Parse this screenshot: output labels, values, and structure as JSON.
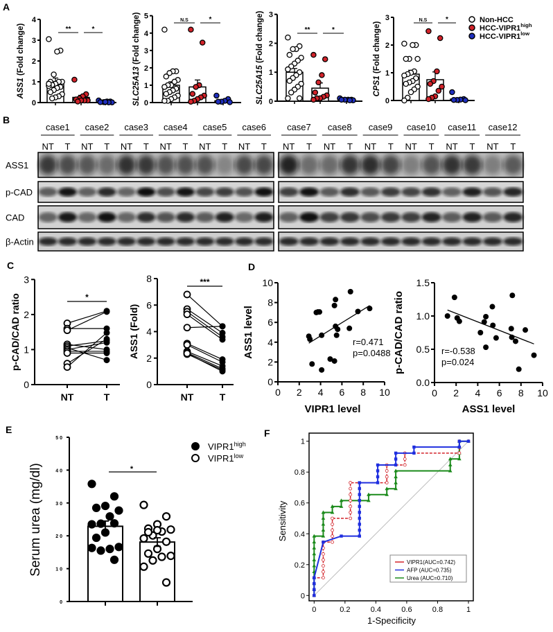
{
  "panel_labels": {
    "A": "A",
    "B": "B",
    "C": "C",
    "D": "D",
    "E": "E",
    "F": "F"
  },
  "legend_A": [
    {
      "text": "Non-HCC",
      "sup": "",
      "color": "#ffffff"
    },
    {
      "text": "HCC-VIPR1",
      "sup": "high",
      "color": "#d2232a"
    },
    {
      "text": "HCC-VIPR1",
      "sup": "low",
      "color": "#1f2fbf"
    }
  ],
  "legend_E": [
    {
      "text": "VIPR1",
      "sup": "high",
      "color": "#000000"
    },
    {
      "text": "VIPR1",
      "sup": "low",
      "color": "#ffffff"
    }
  ],
  "blot": {
    "cases_left": [
      "case1",
      "case2",
      "case3",
      "case4",
      "case5",
      "case6"
    ],
    "cases_right": [
      "case7",
      "case8",
      "case9",
      "case10",
      "case11",
      "case12"
    ],
    "lane_labels": [
      "NT",
      "T"
    ],
    "rows": [
      "ASS1",
      "p-CAD",
      "CAD",
      "β-Actin"
    ]
  },
  "chart_data": [
    {
      "id": "A1",
      "type": "bar",
      "gene": "ASS1",
      "ylabel_suffix": " (Fold change)",
      "ylim": [
        0,
        4
      ],
      "yticks": [
        "0",
        "1",
        "2",
        "3",
        "4"
      ],
      "groups": [
        {
          "name": "Non-HCC",
          "mean": 1.0,
          "sem": 0.18,
          "values": [
            3.05,
            2.5,
            2.45,
            1.35,
            1.0,
            1.0,
            1.0,
            0.9,
            0.85,
            0.8,
            0.75,
            0.7,
            0.6,
            0.5,
            0.4,
            0.3,
            0.25,
            0.2,
            0.9
          ]
        },
        {
          "name": "HCC-VIPR1 high",
          "mean": 0.25,
          "sem": 0.1,
          "values": [
            1.1,
            0.4,
            0.3,
            0.2,
            0.15,
            0.1,
            0.1,
            0.1,
            0.05
          ]
        },
        {
          "name": "HCC-VIPR1 low",
          "mean": 0.05,
          "sem": 0.02,
          "values": [
            0.1,
            0.05,
            0.05,
            0.02,
            0.02,
            0.01,
            0.01,
            0.03
          ]
        }
      ],
      "significance": [
        {
          "from": 0,
          "to": 1,
          "label": "**"
        },
        {
          "from": 1,
          "to": 2,
          "label": "*"
        }
      ]
    },
    {
      "id": "A2",
      "type": "bar",
      "gene": "SLC25A13",
      "ylabel_suffix": " (Fold change)",
      "ylim": [
        0,
        5
      ],
      "yticks": [
        "0",
        "1",
        "2",
        "3",
        "4",
        "5"
      ],
      "groups": [
        {
          "name": "Non-HCC",
          "mean": 1.0,
          "sem": 0.2,
          "values": [
            4.2,
            1.8,
            1.8,
            1.7,
            1.5,
            1.3,
            1.2,
            1.0,
            1.0,
            0.9,
            0.8,
            0.7,
            0.6,
            0.5,
            0.4,
            0.3,
            0.2,
            0.1,
            0.1
          ]
        },
        {
          "name": "HCC-VIPR1 high",
          "mean": 0.9,
          "sem": 0.4,
          "values": [
            4.2,
            3.45,
            1.0,
            0.9,
            0.5,
            0.4,
            0.3,
            0.2,
            0.1,
            0.05
          ]
        },
        {
          "name": "HCC-VIPR1 low",
          "mean": 0.1,
          "sem": 0.06,
          "values": [
            0.4,
            0.2,
            0.1,
            0.05,
            0.05,
            0.02
          ]
        }
      ],
      "significance": [
        {
          "from": 0,
          "to": 1,
          "label": "N.S"
        },
        {
          "from": 1,
          "to": 2,
          "label": "*"
        }
      ]
    },
    {
      "id": "A3",
      "type": "bar",
      "gene": "SLC25A15",
      "ylabel_suffix": " (Fold change)",
      "ylim": [
        0,
        3
      ],
      "yticks": [
        "0",
        "1",
        "2",
        "3"
      ],
      "groups": [
        {
          "name": "Non-HCC",
          "mean": 1.0,
          "sem": 0.13,
          "values": [
            2.2,
            1.9,
            1.8,
            1.8,
            1.6,
            1.5,
            1.4,
            1.3,
            1.2,
            1.1,
            1.0,
            0.9,
            0.8,
            0.7,
            0.6,
            0.5,
            0.4,
            0.3,
            0.1,
            0.1
          ]
        },
        {
          "name": "HCC-VIPR1 high",
          "mean": 0.45,
          "sem": 0.18,
          "values": [
            1.6,
            1.45,
            0.9,
            0.65,
            0.3,
            0.2,
            0.15,
            0.1,
            0.1,
            0.05
          ]
        },
        {
          "name": "HCC-VIPR1 low",
          "mean": 0.05,
          "sem": 0.01,
          "values": [
            0.1,
            0.05,
            0.05,
            0.05,
            0.05,
            0.03,
            0.03
          ]
        }
      ],
      "significance": [
        {
          "from": 0,
          "to": 1,
          "label": "**"
        },
        {
          "from": 1,
          "to": 2,
          "label": "*"
        }
      ]
    },
    {
      "id": "A4",
      "type": "bar",
      "gene": "CPS1",
      "ylabel_suffix": " (Fold change)",
      "ylim": [
        0,
        3
      ],
      "yticks": [
        "0",
        "1",
        "2",
        "3"
      ],
      "groups": [
        {
          "name": "Non-HCC",
          "mean": 0.95,
          "sem": 0.14,
          "values": [
            2.05,
            2.0,
            2.0,
            1.5,
            1.5,
            1.5,
            1.05,
            1.0,
            0.95,
            0.9,
            0.8,
            0.7,
            0.65,
            0.6,
            0.5,
            0.4,
            0.3,
            0.1,
            0.0
          ]
        },
        {
          "name": "HCC-VIPR1 high",
          "mean": 0.75,
          "sem": 0.28,
          "values": [
            2.5,
            2.25,
            1.05,
            0.7,
            0.6,
            0.5,
            0.35,
            0.15,
            0.1,
            0.05
          ]
        },
        {
          "name": "HCC-VIPR1 low",
          "mean": 0.05,
          "sem": 0.04,
          "values": [
            0.3,
            0.05,
            0.03,
            0.02,
            0.02,
            0.01
          ]
        }
      ],
      "significance": [
        {
          "from": 0,
          "to": 1,
          "label": "N.S"
        },
        {
          "from": 1,
          "to": 2,
          "label": "*"
        }
      ]
    },
    {
      "id": "C1",
      "type": "line",
      "ylabel": "p-CAD/CAD ratio",
      "categories": [
        "NT",
        "T"
      ],
      "ylim": [
        0,
        3
      ],
      "yticks": [
        "0",
        "1",
        "2",
        "3"
      ],
      "pairs": [
        [
          1.75,
          2.1
        ],
        [
          1.6,
          1.6
        ],
        [
          1.55,
          2.08
        ],
        [
          1.15,
          1.0
        ],
        [
          1.1,
          1.25
        ],
        [
          1.05,
          0.7
        ],
        [
          1.0,
          1.2
        ],
        [
          0.95,
          0.95
        ],
        [
          0.9,
          0.9
        ],
        [
          0.6,
          1.3
        ],
        [
          0.5,
          1.48
        ]
      ],
      "significance": [
        {
          "from": 0,
          "to": 1,
          "label": "*"
        }
      ]
    },
    {
      "id": "C2",
      "type": "line",
      "ylabel": "ASS1 (Fold)",
      "categories": [
        "NT",
        "T"
      ],
      "ylim": [
        0,
        8
      ],
      "yticks": [
        "0",
        "2",
        "4",
        "6",
        "8"
      ],
      "pairs": [
        [
          6.8,
          4.4
        ],
        [
          5.7,
          3.9
        ],
        [
          5.5,
          3.6
        ],
        [
          5.3,
          3.4
        ],
        [
          4.3,
          4.4
        ],
        [
          3.1,
          1.9
        ],
        [
          3.0,
          1.7
        ],
        [
          2.5,
          1.4
        ],
        [
          2.4,
          1.2
        ],
        [
          2.3,
          1.1
        ],
        [
          2.35,
          1.0
        ]
      ],
      "significance": [
        {
          "from": 0,
          "to": 1,
          "label": "***"
        }
      ]
    },
    {
      "id": "D1",
      "type": "scatter",
      "xlabel": "VIPR1 level",
      "ylabel": "ASS1 level",
      "xlim": [
        0,
        10
      ],
      "ylim": [
        0,
        10
      ],
      "xticks": [
        "0",
        "2",
        "4",
        "6",
        "8",
        "10"
      ],
      "yticks": [
        "0",
        "2",
        "4",
        "6",
        "8",
        "10"
      ],
      "points": [
        [
          6.8,
          9.1
        ],
        [
          5.4,
          8.3
        ],
        [
          5.3,
          7.7
        ],
        [
          3.6,
          7.0
        ],
        [
          3.75,
          7.05
        ],
        [
          3.9,
          7.05
        ],
        [
          7.5,
          7.1
        ],
        [
          8.6,
          7.4
        ],
        [
          5.4,
          5.6
        ],
        [
          5.6,
          5.3
        ],
        [
          6.7,
          5.4
        ],
        [
          4.1,
          4.7
        ],
        [
          5.5,
          4.7
        ],
        [
          2.9,
          4.6
        ],
        [
          3.0,
          4.3
        ],
        [
          3.2,
          1.8
        ],
        [
          4.9,
          2.3
        ],
        [
          5.3,
          2.1
        ],
        [
          4.1,
          1.2
        ]
      ],
      "fit": [
        [
          2.9,
          3.9
        ],
        [
          8.6,
          7.7
        ]
      ],
      "annotation": [
        "r=0.471",
        "p=0.0488"
      ]
    },
    {
      "id": "D2",
      "type": "scatter",
      "xlabel": "ASS1 level",
      "ylabel": "p-CAD/CAD ratio",
      "xlim": [
        0,
        10
      ],
      "ylim": [
        0,
        1.5
      ],
      "xticks": [
        "0",
        "2",
        "4",
        "6",
        "8",
        "10"
      ],
      "yticks": [
        "0.0",
        "0.5",
        "1.0",
        "1.5"
      ],
      "points": [
        [
          1.2,
          1.0
        ],
        [
          1.85,
          1.28
        ],
        [
          2.1,
          0.97
        ],
        [
          2.3,
          0.92
        ],
        [
          4.25,
          0.75
        ],
        [
          4.6,
          0.91
        ],
        [
          4.75,
          0.99
        ],
        [
          4.75,
          0.53
        ],
        [
          5.35,
          1.14
        ],
        [
          5.4,
          0.86
        ],
        [
          5.7,
          0.67
        ],
        [
          7.1,
          0.81
        ],
        [
          7.2,
          1.31
        ],
        [
          7.15,
          0.68
        ],
        [
          7.5,
          0.62
        ],
        [
          7.8,
          0.2
        ],
        [
          8.4,
          0.79
        ],
        [
          9.2,
          0.41
        ]
      ],
      "fit": [
        [
          1.2,
          1.09
        ],
        [
          9.2,
          0.58
        ]
      ],
      "annotation": [
        "r=-0.538",
        "p=0.024"
      ]
    },
    {
      "id": "E",
      "type": "bar",
      "ylabel": "Serum urea (mg/dl)",
      "ylim": [
        0,
        50
      ],
      "yticks": [
        "0",
        "10",
        "20",
        "30",
        "40",
        "50"
      ],
      "groups": [
        {
          "name": "VIPR1 high",
          "mean": 22.9,
          "sem": 1.6,
          "values": [
            35.8,
            32.0,
            29.1,
            28.5,
            27.7,
            25.9,
            23.7,
            23.5,
            23.8,
            21.0,
            19.4,
            16.6,
            16.0,
            15.5,
            16.3,
            12.7
          ]
        },
        {
          "name": "VIPR1 low",
          "mean": 18.1,
          "sem": 1.3,
          "values": [
            29.4,
            25.9,
            23.5,
            22.2,
            21.9,
            21.3,
            20.1,
            19.2,
            18.2,
            16.0,
            14.6,
            13.9,
            13.6,
            12.5,
            10.6,
            5.8,
            21.7,
            21.1
          ]
        }
      ],
      "significance": [
        {
          "from": 0,
          "to": 1,
          "label": "*"
        }
      ]
    },
    {
      "id": "F",
      "type": "line",
      "xlabel": "1-Specificity",
      "ylabel": "Sensitivity",
      "xlim": [
        0,
        1
      ],
      "ylim": [
        0,
        1
      ],
      "xticks": [
        "0",
        "0.2",
        "0.4",
        "0.6",
        "0.8",
        "1"
      ],
      "yticks": [
        "0",
        "0.2",
        "0.4",
        "0.6",
        "0.8",
        "1"
      ],
      "legend": "bottom-right",
      "series": [
        {
          "name": "VIPR1(AUC=0.742)",
          "color": "#d2232a",
          "points": [
            [
              0,
              0
            ],
            [
              0,
              0.115
            ],
            [
              0.059,
              0.115
            ],
            [
              0.059,
              0.346
            ],
            [
              0.118,
              0.346
            ],
            [
              0.118,
              0.5
            ],
            [
              0.235,
              0.5
            ],
            [
              0.235,
              0.731
            ],
            [
              0.471,
              0.731
            ],
            [
              0.471,
              0.846
            ],
            [
              0.588,
              0.846
            ],
            [
              0.588,
              0.923
            ],
            [
              0.941,
              0.923
            ],
            [
              0.941,
              1
            ],
            [
              1,
              1
            ]
          ]
        },
        {
          "name": "AFP (AUC=0.735)",
          "color": "#1f2fdf",
          "points": [
            [
              0,
              0
            ],
            [
              0,
              0.115
            ],
            [
              0.059,
              0.346
            ],
            [
              0.176,
              0.385
            ],
            [
              0.294,
              0.385
            ],
            [
              0.294,
              0.731
            ],
            [
              0.412,
              0.731
            ],
            [
              0.412,
              0.846
            ],
            [
              0.529,
              0.846
            ],
            [
              0.529,
              0.923
            ],
            [
              0.647,
              0.923
            ],
            [
              0.647,
              0.962
            ],
            [
              0.941,
              0.962
            ],
            [
              0.941,
              1
            ],
            [
              1,
              1
            ]
          ]
        },
        {
          "name": "Urea (AUC=0.710)",
          "color": "#1a8a1a",
          "points": [
            [
              0,
              0
            ],
            [
              0,
              0.385
            ],
            [
              0.059,
              0.385
            ],
            [
              0.059,
              0.538
            ],
            [
              0.118,
              0.538
            ],
            [
              0.118,
              0.577
            ],
            [
              0.176,
              0.577
            ],
            [
              0.176,
              0.615
            ],
            [
              0.353,
              0.615
            ],
            [
              0.353,
              0.654
            ],
            [
              0.471,
              0.654
            ],
            [
              0.471,
              0.692
            ],
            [
              0.529,
              0.692
            ],
            [
              0.529,
              0.808
            ],
            [
              0.882,
              0.808
            ],
            [
              0.882,
              0.885
            ],
            [
              0.941,
              0.885
            ],
            [
              0.941,
              1
            ],
            [
              1,
              1
            ]
          ]
        }
      ]
    }
  ]
}
